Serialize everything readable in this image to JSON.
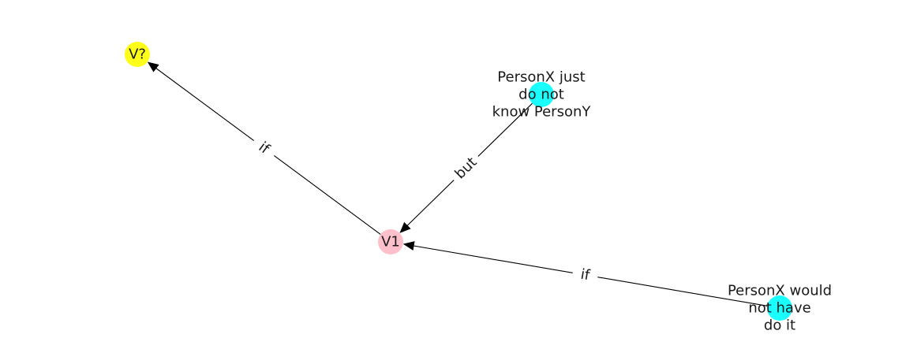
{
  "diagram": {
    "nodes": [
      {
        "id": "v_q",
        "label_lines": [
          "V?"
        ],
        "color": "#ffff1a"
      },
      {
        "id": "v1",
        "label_lines": [
          "V1"
        ],
        "color": "#ffc0cb"
      },
      {
        "id": "not_know",
        "label_lines": [
          "PersonX just",
          "do not",
          "know PersonY"
        ],
        "color": "#1affff"
      },
      {
        "id": "would_not",
        "label_lines": [
          "PersonX would",
          "not have",
          "do it"
        ],
        "color": "#1affff"
      }
    ],
    "edges": [
      {
        "from": "v1",
        "to": "v_q",
        "label": "if"
      },
      {
        "from": "not_know",
        "to": "v1",
        "label": "but"
      },
      {
        "from": "would_not",
        "to": "v1",
        "label": "if"
      }
    ],
    "edge_color": "#000000"
  }
}
